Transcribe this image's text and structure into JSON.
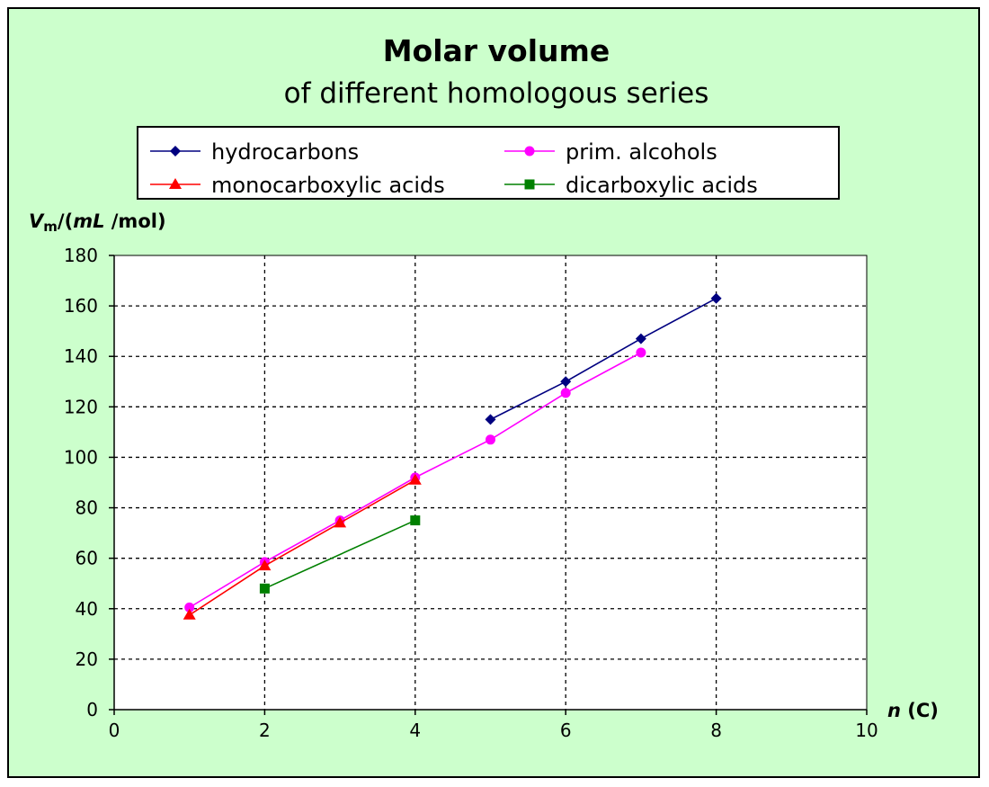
{
  "chart_data": {
    "type": "line",
    "title": "Molar volume",
    "subtitle": "of different homologous series",
    "xlabel": {
      "var": "n",
      "unit": "(C)"
    },
    "ylabel": {
      "var": "V",
      "sub": "m",
      "open": "/(",
      "unit_var": "mL",
      "unit_rest": " /mol)"
    },
    "xlim": [
      0,
      10
    ],
    "ylim": [
      0,
      180
    ],
    "xticks": [
      0,
      2,
      4,
      6,
      8,
      10
    ],
    "yticks": [
      0,
      20,
      40,
      60,
      80,
      100,
      120,
      140,
      160,
      180
    ],
    "grid": true,
    "legend_placement": "top",
    "background": "#ccffcc",
    "plot_background": "#ffffff",
    "series": [
      {
        "name": "hydrocarbons",
        "color": "#000080",
        "marker": "diamond",
        "x": [
          5,
          6,
          7,
          8
        ],
        "y": [
          115,
          130,
          147,
          163
        ]
      },
      {
        "name": "prim. alcohols",
        "color": "#ff00ff",
        "marker": "circle",
        "x": [
          1,
          2,
          3,
          4,
          5,
          6,
          7
        ],
        "y": [
          40.5,
          58.5,
          75,
          92,
          107,
          125.5,
          141.5
        ]
      },
      {
        "name": "monocarboxylic acids",
        "color": "#ff0000",
        "marker": "triangle",
        "x": [
          1,
          2,
          3,
          4
        ],
        "y": [
          37.5,
          57,
          74,
          91
        ]
      },
      {
        "name": "dicarboxylic acids",
        "color": "#008000",
        "marker": "square",
        "x": [
          2,
          4
        ],
        "y": [
          48,
          75
        ]
      }
    ]
  }
}
